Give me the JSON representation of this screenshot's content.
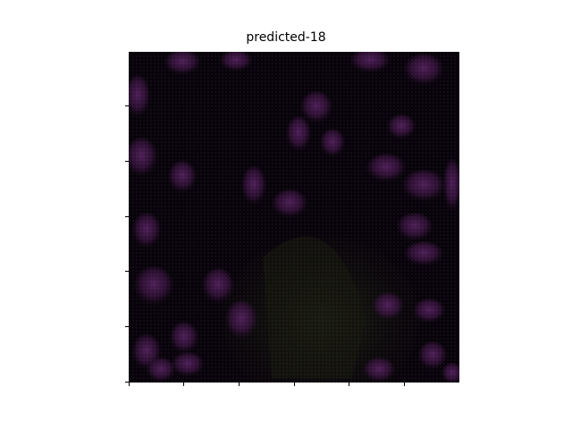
{
  "figure": {
    "title": "predicted-18"
  },
  "image": {
    "description_colors": {
      "background": "#08030a",
      "blob": "#3a1440",
      "blob_highlight": "#5a2466",
      "green_tint": "#1d2412"
    }
  }
}
